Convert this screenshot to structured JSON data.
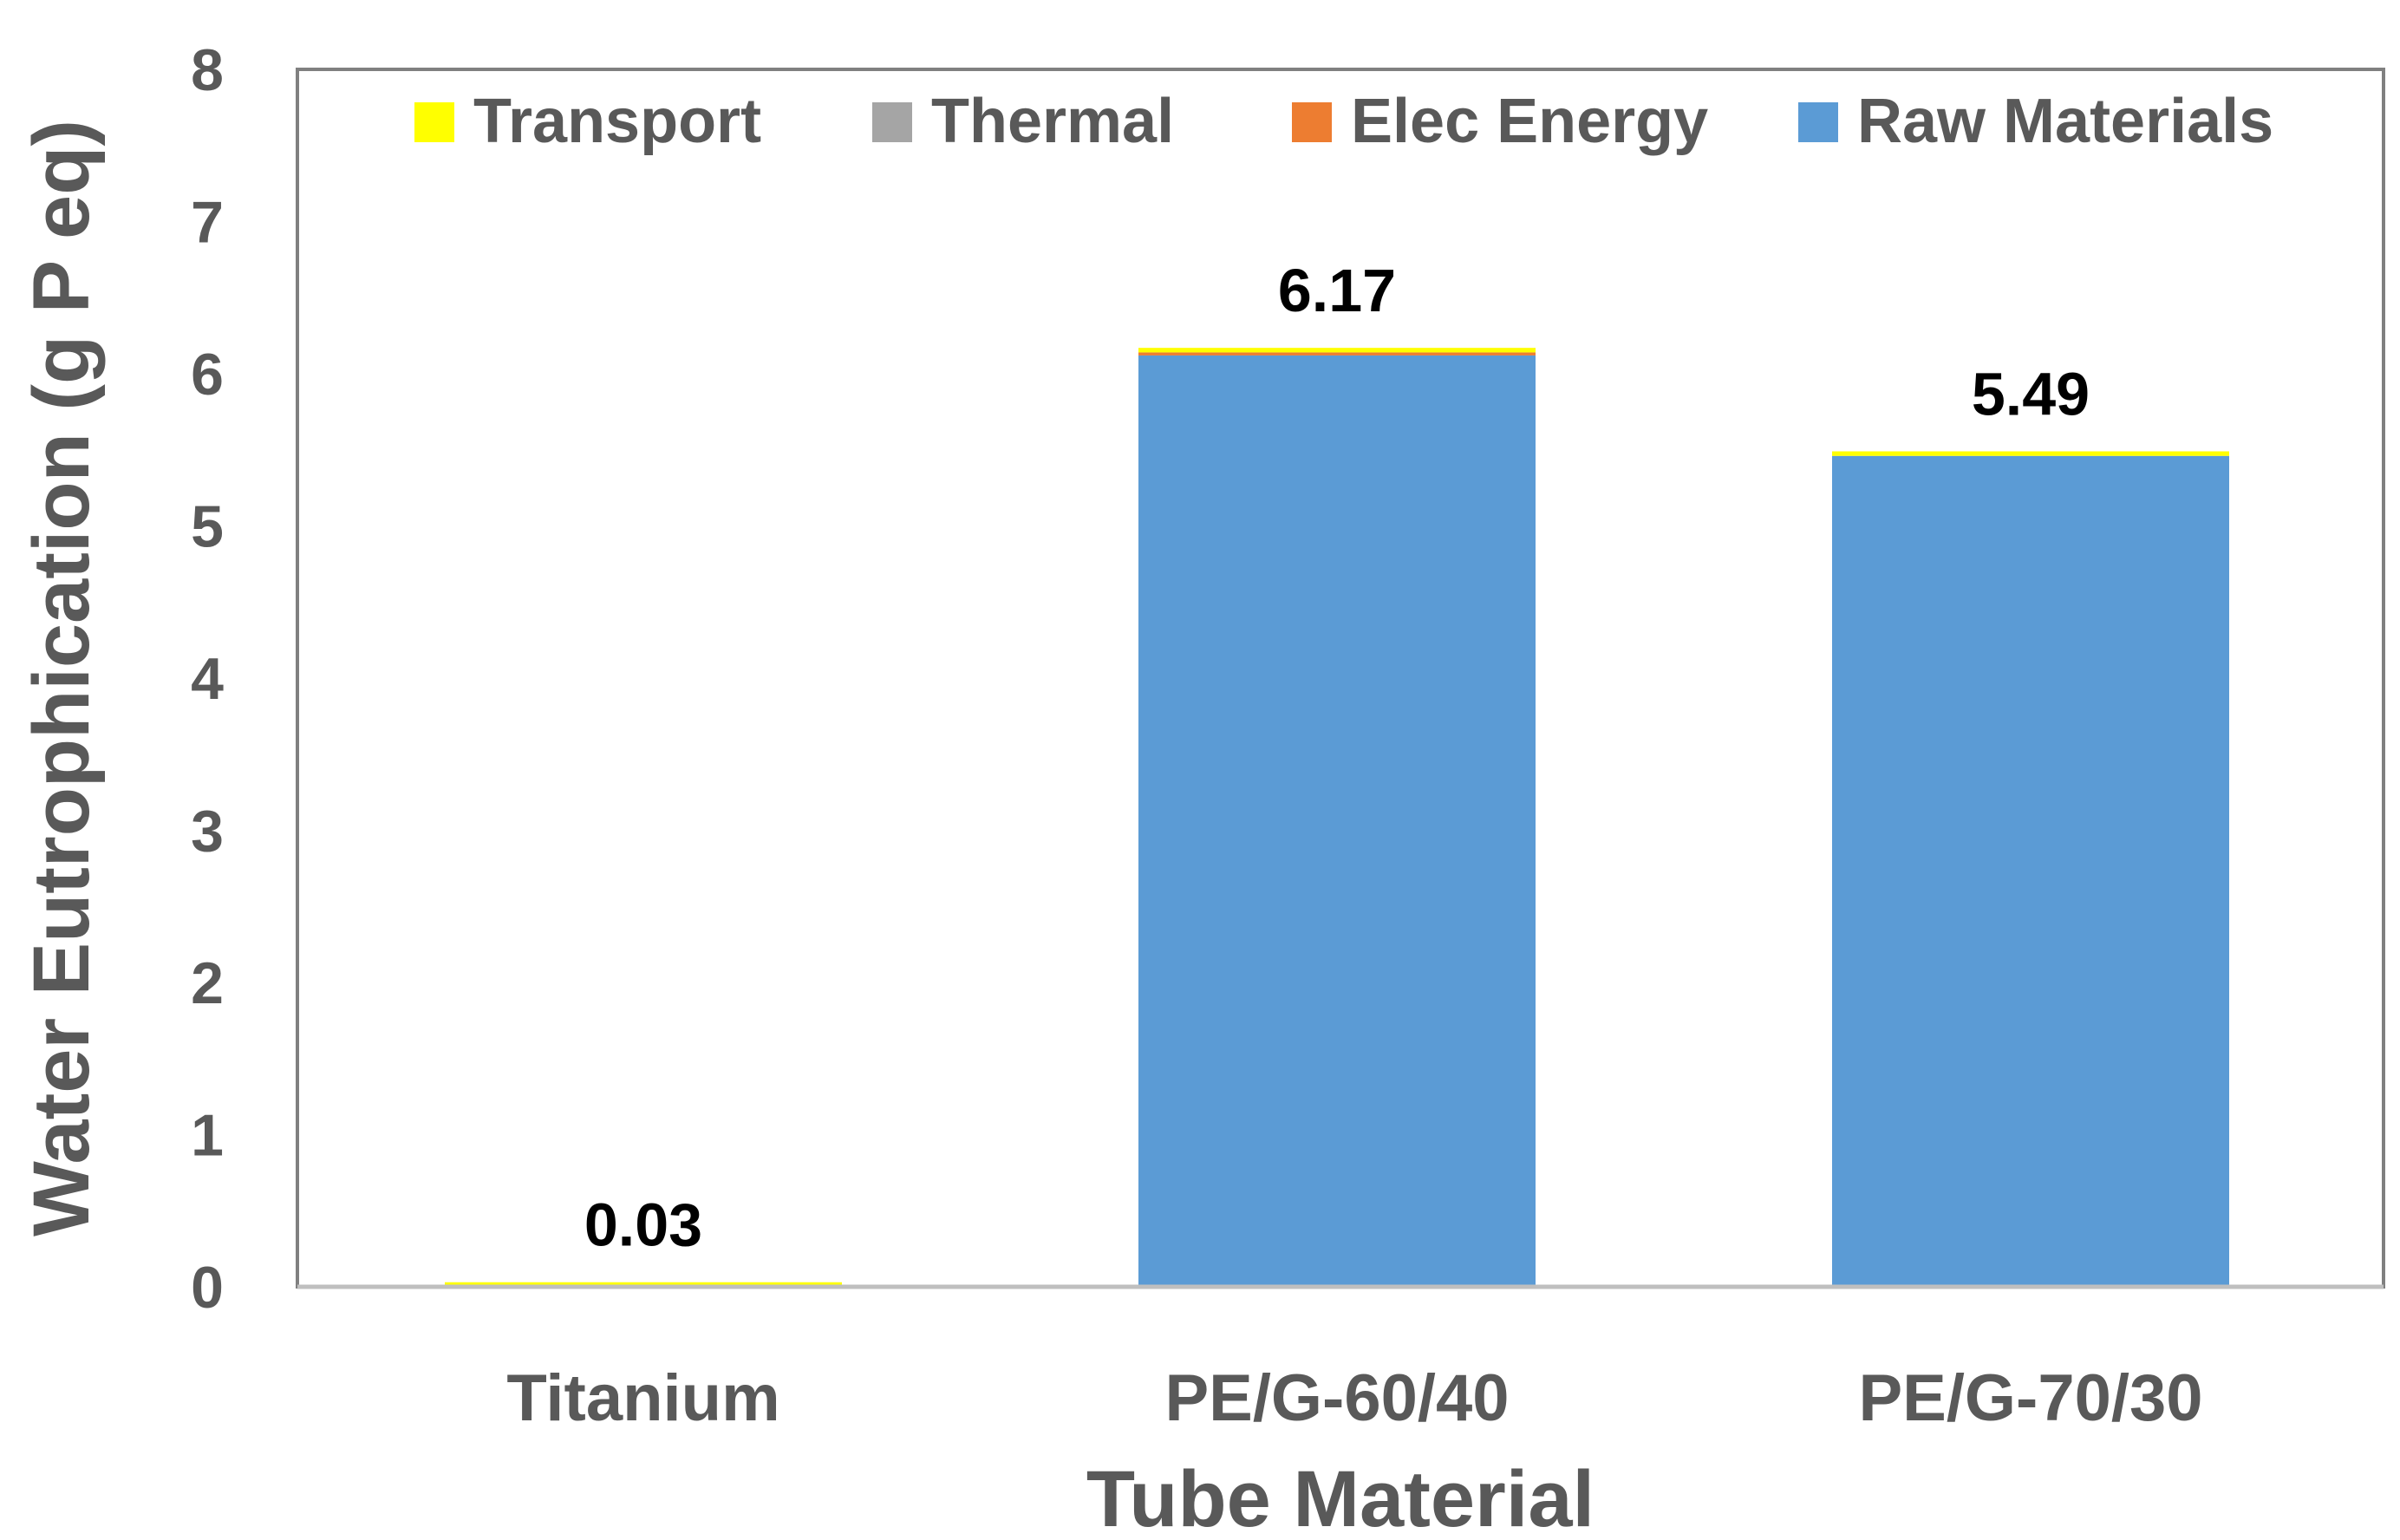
{
  "chart_data": {
    "type": "bar",
    "stacked": true,
    "title": "",
    "xlabel": "Tube Material",
    "ylabel": "Water Eutrophication (g P eq)",
    "ylim": [
      0,
      8
    ],
    "yticks": [
      "0",
      "1",
      "2",
      "3",
      "4",
      "5",
      "6",
      "7",
      "8"
    ],
    "categories": [
      "Titanium",
      "PE/G-60/40",
      "PE/G-70/30"
    ],
    "series": [
      {
        "name": "Raw Materials",
        "color": "#5B9BD5",
        "values": [
          0.0,
          6.12,
          5.46
        ]
      },
      {
        "name": "Elec Energy",
        "color": "#ED7D31",
        "values": [
          0.0,
          0.02,
          0.0
        ]
      },
      {
        "name": "Thermal",
        "color": "#A5A5A5",
        "values": [
          0.0,
          0.0,
          0.0
        ]
      },
      {
        "name": "Transport",
        "color": "#FFFF00",
        "values": [
          0.03,
          0.03,
          0.03
        ]
      }
    ],
    "totals": [
      "0.03",
      "6.17",
      "5.49"
    ],
    "legend": {
      "position": "top",
      "order": [
        "Transport",
        "Thermal",
        "Elec Energy",
        "Raw Materials"
      ]
    },
    "grid": false
  }
}
